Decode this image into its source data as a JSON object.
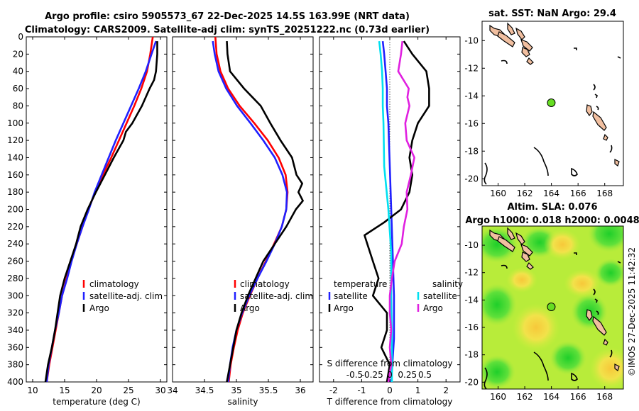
{
  "header": {
    "line1": "Argo profile: csiro 5905573_67 22-Dec-2025 14.5S 163.99E (NRT data)",
    "line2": "Climatology: CARS2009. Satellite-adj clim: synTS_20251222.nc (0.73d earlier)"
  },
  "colors": {
    "climatology": "#ff0000",
    "satellite": "#2020ff",
    "argo": "#000000",
    "sat_s": "#00e0f0",
    "argo_s": "#e020e0"
  },
  "depth_axis": {
    "ticks": [
      0,
      20,
      40,
      60,
      80,
      100,
      120,
      140,
      160,
      180,
      200,
      220,
      240,
      260,
      280,
      300,
      320,
      340,
      360,
      380,
      400
    ],
    "range": [
      0,
      400
    ]
  },
  "chart_data": [
    {
      "type": "line",
      "name": "temperature",
      "xlabel": "temperature (deg C)",
      "xlim": [
        9,
        31
      ],
      "xticks": [
        10,
        15,
        20,
        25,
        30
      ],
      "legend": [
        "climatology",
        "satellite-adj. clim",
        "Argo"
      ],
      "series": [
        {
          "name": "climatology",
          "depth": [
            0,
            20,
            40,
            60,
            80,
            100,
            120,
            140,
            160,
            180,
            200,
            220,
            240,
            260,
            280,
            300,
            320,
            340,
            360,
            380,
            400
          ],
          "values": [
            28.8,
            28.4,
            27.9,
            27.0,
            25.9,
            24.7,
            23.5,
            22.3,
            21.0,
            19.8,
            18.7,
            17.8,
            16.9,
            16.0,
            15.3,
            14.6,
            14.1,
            13.6,
            13.1,
            12.6,
            12.2
          ]
        },
        {
          "name": "satellite-adj. clim",
          "depth": [
            5,
            20,
            40,
            60,
            80,
            100,
            120,
            140,
            160,
            180,
            200,
            220,
            240,
            260,
            280,
            300,
            320,
            340,
            360,
            380,
            400
          ],
          "values": [
            29.3,
            28.6,
            27.7,
            26.6,
            25.4,
            24.2,
            23.0,
            21.9,
            20.8,
            19.7,
            18.8,
            17.8,
            16.9,
            16.1,
            15.4,
            14.6,
            14.1,
            13.5,
            13.0,
            12.5,
            12.2
          ]
        },
        {
          "name": "Argo",
          "depth": [
            5,
            20,
            40,
            50,
            60,
            80,
            100,
            110,
            120,
            140,
            160,
            180,
            200,
            220,
            240,
            260,
            280,
            300,
            320,
            340,
            360,
            380,
            400
          ],
          "values": [
            29.5,
            29.5,
            29.3,
            29.0,
            28.3,
            27.1,
            25.6,
            24.6,
            24.2,
            22.7,
            21.3,
            19.9,
            18.6,
            17.5,
            16.8,
            15.9,
            15.0,
            14.3,
            13.9,
            13.5,
            13.0,
            12.4,
            12.0
          ]
        }
      ]
    },
    {
      "type": "line",
      "name": "salinity",
      "xlabel": "salinity",
      "xlim": [
        34,
        36.2
      ],
      "xticks": [
        34,
        34.5,
        35,
        35.5,
        36
      ],
      "legend": [
        "climatology",
        "satellite-adj. clim",
        "Argo"
      ],
      "series": [
        {
          "name": "climatology",
          "depth": [
            0,
            20,
            40,
            60,
            80,
            100,
            120,
            140,
            160,
            180,
            200,
            220,
            240,
            260,
            280,
            300,
            320,
            340,
            360,
            380,
            400
          ],
          "values": [
            34.67,
            34.69,
            34.75,
            34.87,
            35.05,
            35.28,
            35.49,
            35.66,
            35.77,
            35.8,
            35.78,
            35.71,
            35.59,
            35.46,
            35.33,
            35.21,
            35.1,
            35.02,
            34.96,
            34.91,
            34.88
          ]
        },
        {
          "name": "satellite-adj. clim",
          "depth": [
            5,
            20,
            40,
            60,
            80,
            100,
            120,
            140,
            160,
            180,
            200,
            220,
            240,
            260,
            280,
            300,
            320,
            340,
            360,
            380,
            400
          ],
          "values": [
            34.63,
            34.66,
            34.72,
            34.84,
            35.01,
            35.22,
            35.42,
            35.6,
            35.72,
            35.79,
            35.78,
            35.71,
            35.6,
            35.47,
            35.33,
            35.2,
            35.09,
            35.0,
            34.94,
            34.9,
            34.87
          ]
        },
        {
          "name": "Argo",
          "depth": [
            5,
            20,
            40,
            60,
            70,
            80,
            100,
            120,
            140,
            160,
            170,
            180,
            190,
            200,
            220,
            240,
            260,
            280,
            300,
            320,
            340,
            360,
            380,
            400
          ],
          "values": [
            34.85,
            34.86,
            34.9,
            35.12,
            35.25,
            35.38,
            35.53,
            35.69,
            35.87,
            35.94,
            36.03,
            35.97,
            36.04,
            35.93,
            35.78,
            35.6,
            35.42,
            35.3,
            35.18,
            35.08,
            35.0,
            34.95,
            34.9,
            34.85
          ]
        }
      ]
    },
    {
      "type": "line",
      "name": "differences",
      "xlabel": "T difference from climatology",
      "xlim": [
        -2.5,
        2.5
      ],
      "xticks": [
        -2,
        -1,
        0,
        1,
        2
      ],
      "top_xlabel": "S difference from climatology",
      "top_xticks": [
        "-0.5",
        "-0.25",
        "0",
        "0.25",
        "0.5"
      ],
      "legend_t_title": "temperature",
      "legend_s_title": "salinity",
      "legend_labels": [
        "satellite",
        "Argo",
        "satellite",
        "Argo"
      ],
      "series": [
        {
          "name": "T satellite",
          "depth": [
            5,
            20,
            40,
            60,
            80,
            100,
            150,
            200,
            250,
            300,
            350,
            400
          ],
          "values": [
            -0.25,
            -0.2,
            -0.15,
            -0.1,
            -0.1,
            -0.05,
            0.0,
            0.05,
            0.1,
            0.15,
            0.15,
            0.05
          ]
        },
        {
          "name": "T Argo",
          "depth": [
            5,
            20,
            40,
            60,
            80,
            100,
            120,
            140,
            160,
            180,
            200,
            215,
            230,
            240,
            260,
            280,
            300,
            320,
            340,
            360,
            380,
            400
          ],
          "values": [
            0.5,
            0.8,
            1.3,
            1.4,
            1.4,
            1.0,
            0.8,
            0.7,
            0.8,
            0.7,
            0.4,
            -0.2,
            -0.9,
            -0.8,
            -0.6,
            -0.4,
            -0.6,
            -0.1,
            -0.1,
            -0.3,
            0.0,
            -0.1
          ]
        },
        {
          "name": "S satellite",
          "depth": [
            5,
            20,
            40,
            60,
            80,
            100,
            150,
            200,
            250,
            300,
            350,
            400
          ],
          "values": [
            -0.15,
            -0.13,
            -0.11,
            -0.1,
            -0.1,
            -0.09,
            -0.08,
            -0.02,
            0.02,
            0.02,
            0.03,
            0.03
          ]
        },
        {
          "name": "S Argo",
          "depth": [
            5,
            20,
            40,
            60,
            70,
            80,
            100,
            120,
            140,
            160,
            180,
            200,
            220,
            240,
            260,
            280,
            300,
            320,
            340,
            360,
            380,
            400
          ],
          "values": [
            0.18,
            0.16,
            0.12,
            0.27,
            0.25,
            0.28,
            0.22,
            0.24,
            0.35,
            0.3,
            0.24,
            0.25,
            0.2,
            0.17,
            0.07,
            0.03,
            0.0,
            0.0,
            0.02,
            0.0,
            0.02,
            -0.02
          ]
        }
      ]
    },
    {
      "type": "heatmap",
      "name": "sst_map",
      "title": "sat. SST: NaN Argo: 29.4",
      "xticks": [
        160,
        162,
        164,
        166,
        168
      ],
      "yticks": [
        -10,
        -12,
        -14,
        -16,
        -18,
        -20
      ],
      "xlim": [
        158.8,
        169.4
      ],
      "ylim": [
        -20.5,
        -8.6
      ],
      "argo_position": {
        "lon": 163.99,
        "lat": -14.5
      }
    },
    {
      "type": "heatmap",
      "name": "sla_map",
      "title1": "Altim. SLA: 0.076",
      "title2": "Argo h1000: 0.018 h2000: 0.0048",
      "xticks": [
        160,
        162,
        164,
        166,
        168
      ],
      "yticks": [
        -10,
        -12,
        -14,
        -16,
        -18,
        -20
      ],
      "xlim": [
        158.8,
        169.4
      ],
      "ylim": [
        -20.5,
        -8.6
      ],
      "argo_position": {
        "lon": 163.99,
        "lat": -14.5
      }
    }
  ],
  "credit": "©IMOS 27-Dec-2025 11:42:32"
}
